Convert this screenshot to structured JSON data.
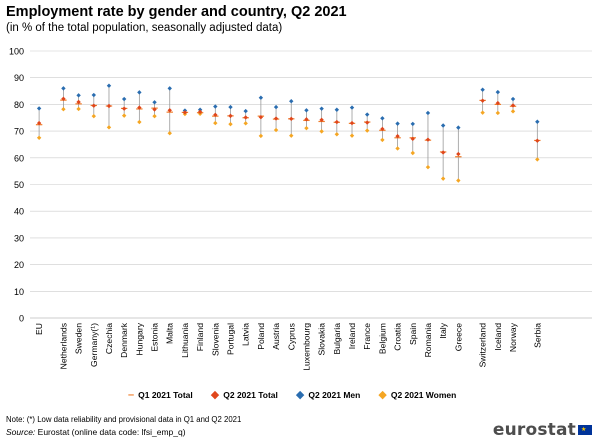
{
  "header": {
    "title": "Employment rate by gender and country, Q2 2021",
    "subtitle": "(in % of the total population, seasonally adjusted data)"
  },
  "legend": {
    "q1_total": "Q1 2021 Total",
    "q2_total": "Q2 2021 Total",
    "q2_men": "Q2 2021 Men",
    "q2_women": "Q2 2021 Women"
  },
  "footer": {
    "note": "Note: (*) Low data reliability and provisional data in Q1 and Q2 2021",
    "source_label": "Source:",
    "source_text": " Eurostat (online data code: lfsi_emp_q)",
    "logo": "eurostat"
  },
  "colors": {
    "men": "#2a6db0",
    "women": "#f5a623",
    "q2_total": "#e0461b",
    "q1_total": "#f07d2a",
    "grid": "#cccccc",
    "line": "#999999"
  },
  "chart_data": {
    "type": "scatter",
    "title": "Employment rate by gender and country, Q2 2021",
    "ylim": [
      0,
      100
    ],
    "yticks": [
      0,
      10,
      20,
      30,
      40,
      50,
      60,
      70,
      80,
      90,
      100
    ],
    "grid": true,
    "legend_position": "bottom",
    "groups": [
      [
        "EU"
      ],
      [
        "Netherlands",
        "Sweden",
        "Germany(¹)",
        "Czechia",
        "Denmark",
        "Hungary",
        "Estonia",
        "Malta",
        "Lithuania",
        "Finland",
        "Slovenia",
        "Portugal",
        "Latvia",
        "Poland",
        "Austria",
        "Cyprus",
        "Luxembourg",
        "Slovakia",
        "Bulgaria",
        "Ireland",
        "France",
        "Belgium",
        "Croatia",
        "Spain",
        "Romania",
        "Italy",
        "Greece"
      ],
      [
        "Switzerland",
        "Iceland",
        "Norway"
      ],
      [
        "Serbia"
      ]
    ],
    "categories": [
      "EU",
      "Netherlands",
      "Sweden",
      "Germany(¹)",
      "Czechia",
      "Denmark",
      "Hungary",
      "Estonia",
      "Malta",
      "Lithuania",
      "Finland",
      "Slovenia",
      "Portugal",
      "Latvia",
      "Poland",
      "Austria",
      "Cyprus",
      "Luxembourg",
      "Slovakia",
      "Bulgaria",
      "Ireland",
      "France",
      "Belgium",
      "Croatia",
      "Spain",
      "Romania",
      "Italy",
      "Greece",
      "Switzerland",
      "Iceland",
      "Norway",
      "Serbia"
    ],
    "series": [
      {
        "name": "Q1 2021 Total",
        "values": [
          72.4,
          81.6,
          80.2,
          79.6,
          79.4,
          78.5,
          78.3,
          78.6,
          77.1,
          77.0,
          76.9,
          75.6,
          75.7,
          75.0,
          75.6,
          74.5,
          74.6,
          74.0,
          73.6,
          73.3,
          72.9,
          73.4,
          70.3,
          67.5,
          67.5,
          66.6,
          62.2,
          60.4,
          81.5,
          80.0,
          79.3,
          66.5
        ]
      },
      {
        "name": "Q2 2021 Total",
        "values": [
          73.0,
          82.1,
          80.9,
          79.5,
          79.4,
          78.4,
          78.8,
          78.1,
          77.8,
          77.0,
          77.2,
          76.1,
          75.7,
          75.1,
          75.2,
          74.7,
          74.6,
          74.4,
          74.2,
          73.4,
          73.0,
          73.2,
          70.8,
          68.1,
          67.1,
          66.8,
          62.0,
          61.4,
          81.4,
          80.5,
          79.6,
          66.4
        ]
      },
      {
        "name": "Q2 2021 Men",
        "values": [
          78.5,
          86.0,
          83.4,
          83.5,
          87.0,
          82.0,
          84.5,
          80.8,
          86.0,
          77.7,
          78.0,
          79.2,
          79.0,
          77.5,
          82.5,
          79.0,
          81.2,
          77.8,
          78.4,
          78.0,
          78.8,
          76.2,
          74.8,
          72.8,
          72.7,
          76.8,
          72.1,
          71.3,
          85.5,
          84.6,
          82.0,
          73.5
        ]
      },
      {
        "name": "Q2 2021 Women",
        "values": [
          67.5,
          78.2,
          78.3,
          75.6,
          71.4,
          75.8,
          73.4,
          75.6,
          69.2,
          76.4,
          76.5,
          73.0,
          72.6,
          72.9,
          68.2,
          70.4,
          68.3,
          71.1,
          69.9,
          68.8,
          68.3,
          70.2,
          66.7,
          63.5,
          61.8,
          56.5,
          52.2,
          51.5,
          76.9,
          76.8,
          77.4,
          59.4
        ]
      }
    ]
  }
}
